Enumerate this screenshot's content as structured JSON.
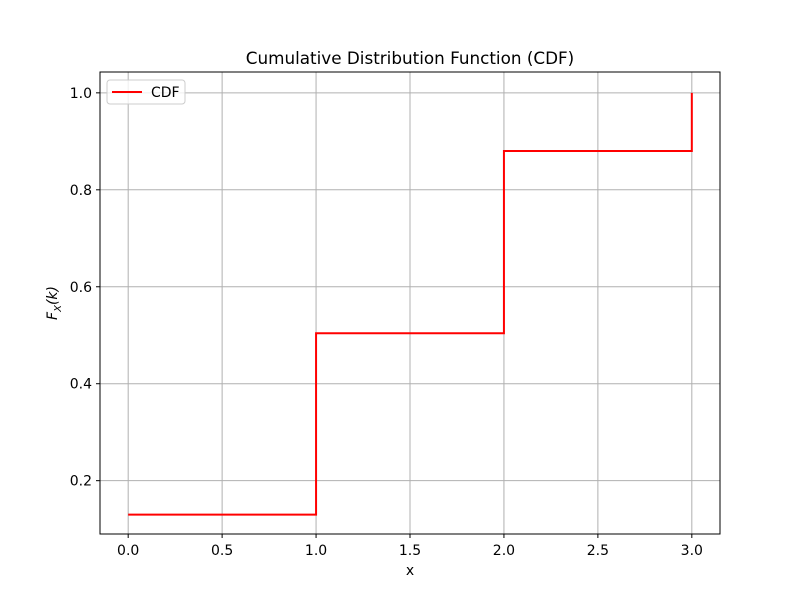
{
  "chart_data": {
    "type": "line",
    "drawstyle": "steps-post",
    "title": "Cumulative Distribution Function (CDF)",
    "xlabel": "x",
    "ylabel_base": "F",
    "ylabel_sub": "X",
    "ylabel_arg": "(k)",
    "xlim": [
      -0.15,
      3.15
    ],
    "ylim": [
      0.09,
      1.043
    ],
    "x_ticks": [
      0.0,
      0.5,
      1.0,
      1.5,
      2.0,
      2.5,
      3.0
    ],
    "x_tick_labels": [
      "0.0",
      "0.5",
      "1.0",
      "1.5",
      "2.0",
      "2.5",
      "3.0"
    ],
    "y_ticks": [
      0.2,
      0.4,
      0.6,
      0.8,
      1.0
    ],
    "y_tick_labels": [
      "0.2",
      "0.4",
      "0.6",
      "0.8",
      "1.0"
    ],
    "grid": true,
    "legend_position": "upper-left",
    "series": [
      {
        "name": "CDF",
        "color": "#ff0000",
        "x": [
          0,
          1,
          2,
          3
        ],
        "y": [
          0.13,
          0.504,
          0.88,
          1.0
        ]
      }
    ]
  }
}
